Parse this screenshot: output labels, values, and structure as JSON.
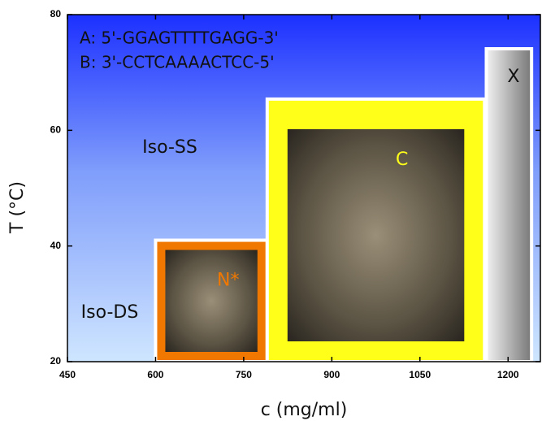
{
  "chart_data": {
    "type": "phase-diagram",
    "x_label": "c (mg/ml)",
    "y_label": "T (°C)",
    "xlim": [
      450,
      1255
    ],
    "ylim": [
      20,
      80
    ],
    "xticks": [
      450,
      600,
      750,
      900,
      1050,
      1200
    ],
    "yticks": [
      20,
      40,
      60,
      80
    ],
    "annotations": [
      "A: 5'-GGAGTTTTGAGG-3'",
      "B: 3'-CCTCAAAACTCC-5'",
      "Iso-SS",
      "Iso-DS"
    ],
    "regions": [
      {
        "name": "N*",
        "color": "#f07800",
        "x": [
          600,
          790
        ],
        "y": [
          20,
          41
        ]
      },
      {
        "name": "C",
        "color": "#ffff1a",
        "x": [
          790,
          1160
        ],
        "y": [
          20,
          65.4
        ]
      },
      {
        "name": "X",
        "color": "#999999",
        "x": [
          1163,
          1240
        ],
        "y": [
          20,
          74.1
        ]
      }
    ]
  }
}
